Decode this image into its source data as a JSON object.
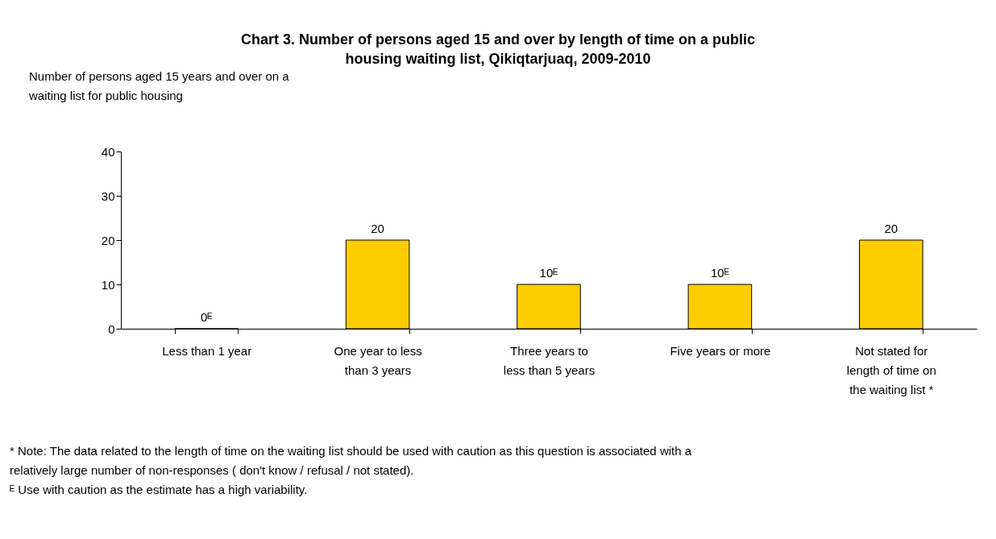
{
  "chart_data": {
    "type": "bar",
    "title": "Chart 3. Number of persons aged 15 and over by length of time on a public housing waiting list,  Qikiqtarjuaq, 2009-2010",
    "ylabel": "Number of persons aged 15 years and over on a waiting list for public housing",
    "categories": [
      "Less than 1 year",
      "One year to less than 3 years",
      "Three years to less than 5 years",
      "Five years or more",
      "Not stated for length of time on the waiting list *"
    ],
    "values": [
      0,
      20,
      10,
      10,
      20
    ],
    "value_labels": [
      "0ᴱ",
      "20",
      "10ᴱ",
      "10ᴱ",
      "20"
    ],
    "color": "#ffcc00",
    "ylim": [
      0,
      40
    ],
    "yticks": [
      0,
      10,
      20,
      30,
      40
    ],
    "annotations": [
      "* Note: The data related to the length of time on the waiting list should be used with caution as this question is associated with a relatively large number of non-responses ( don't know / refusal / not stated).",
      "ᴱ Use with caution as the estimate has a high variability."
    ]
  }
}
